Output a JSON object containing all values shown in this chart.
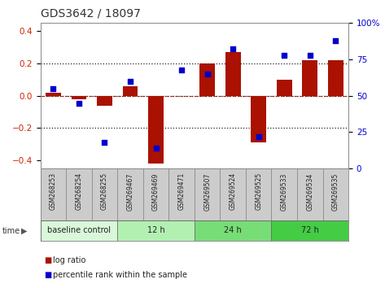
{
  "title": "GDS3642 / 18097",
  "samples": [
    "GSM268253",
    "GSM268254",
    "GSM268255",
    "GSM269467",
    "GSM269469",
    "GSM269471",
    "GSM269507",
    "GSM269524",
    "GSM269525",
    "GSM269533",
    "GSM269534",
    "GSM269535"
  ],
  "log_ratio": [
    0.02,
    -0.02,
    -0.06,
    0.06,
    -0.42,
    0.0,
    0.2,
    0.27,
    -0.29,
    0.1,
    0.22,
    0.22
  ],
  "percentile_rank": [
    55,
    45,
    18,
    60,
    14,
    68,
    65,
    82,
    22,
    78,
    78,
    88
  ],
  "groups": [
    {
      "label": "baseline control",
      "start": 0,
      "end": 3,
      "color": "#d9f7d9"
    },
    {
      "label": "12 h",
      "start": 3,
      "end": 6,
      "color": "#b2f0b2"
    },
    {
      "label": "24 h",
      "start": 6,
      "end": 9,
      "color": "#77dd77"
    },
    {
      "label": "72 h",
      "start": 9,
      "end": 12,
      "color": "#44cc44"
    }
  ],
  "ylim_left": [
    -0.45,
    0.45
  ],
  "yticks_left": [
    -0.4,
    -0.2,
    0.0,
    0.2,
    0.4
  ],
  "yticks_right": [
    0,
    25,
    50,
    75,
    100
  ],
  "bar_color": "#aa1100",
  "dot_color": "#0000cc",
  "background_color": "#ffffff",
  "plot_bg": "#ffffff",
  "tick_label_color_left": "#cc2200",
  "tick_label_color_right": "#0000cc",
  "label_bg": "#cccccc"
}
